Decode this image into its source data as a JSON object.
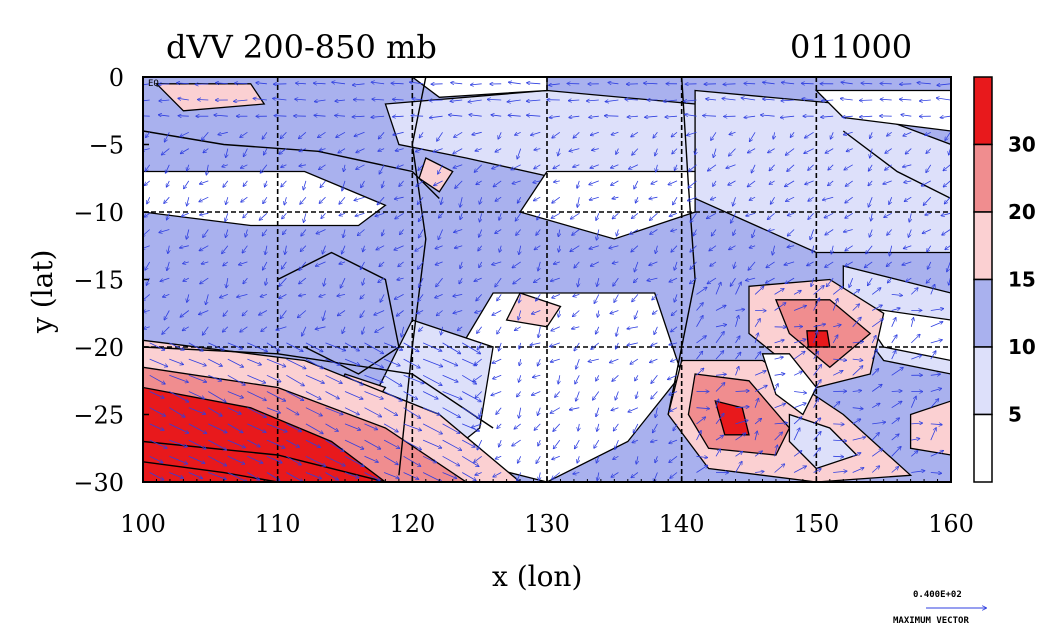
{
  "chart_data": {
    "type": "contour-vector",
    "title": "dVV 200-850 mb",
    "time_label": "011000",
    "xlabel": "x (lon)",
    "ylabel": "y (lat)",
    "xlim": [
      100,
      160
    ],
    "ylim": [
      -30,
      0
    ],
    "x_ticks": [
      "100",
      "110",
      "120",
      "130",
      "140",
      "150",
      "160"
    ],
    "y_ticks": [
      "0",
      "−5",
      "−10",
      "−15",
      "−20",
      "−25",
      "−30"
    ],
    "y_tick_values": [
      0,
      -5,
      -10,
      -15,
      -20,
      -25,
      -30
    ],
    "x_tick_values": [
      100,
      110,
      120,
      130,
      140,
      150,
      160
    ],
    "grid": true,
    "equator_label": "EQ",
    "colorbar": {
      "levels": [
        5,
        10,
        15,
        20,
        30
      ],
      "labels": [
        "5",
        "10",
        "15",
        "20",
        "30"
      ],
      "colors": [
        "#ffffff",
        "#dde0fa",
        "#a9b1ee",
        "#fbd0d2",
        "#f08d8f",
        "#e8191c"
      ]
    },
    "vector_reference": {
      "value_label": "0.400E+02",
      "caption": "MAXIMUM VECTOR"
    },
    "features": [
      {
        "kind": "max",
        "lon": 150,
        "lat": -19.5,
        "level": 30
      },
      {
        "kind": "max",
        "lon": 143.5,
        "lat": -25.5,
        "level": 30
      },
      {
        "kind": "min",
        "lon": 147,
        "lat": -22.5,
        "level": 5
      },
      {
        "kind": "band",
        "lon": 103,
        "lat": -26,
        "level": 30
      }
    ]
  }
}
